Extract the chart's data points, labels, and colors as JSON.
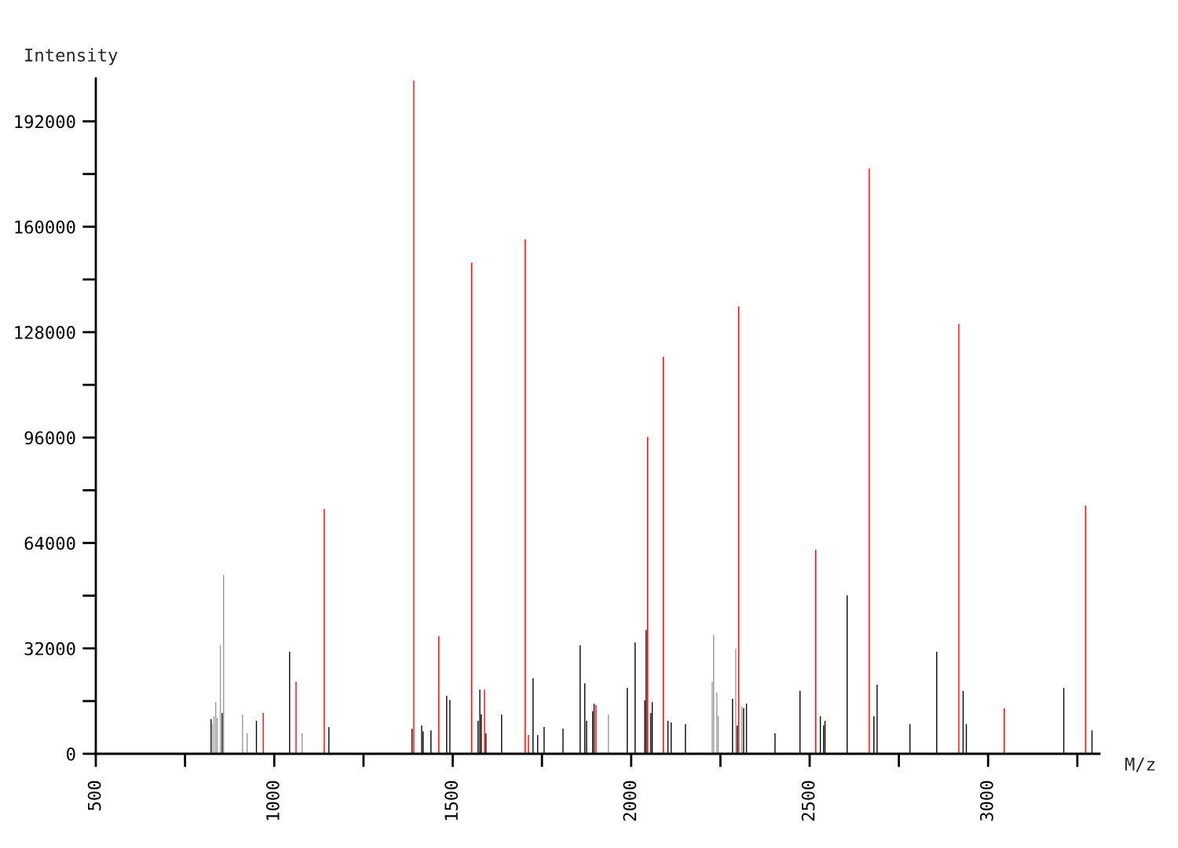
{
  "chart_data": {
    "type": "bar",
    "xlabel": "M/z",
    "ylabel": "Intensity",
    "x": [
      823,
      826,
      831,
      836,
      840,
      849,
      854,
      858,
      911,
      924,
      950,
      969,
      1043,
      1061,
      1078,
      1140,
      1153,
      1386,
      1391,
      1413,
      1417,
      1439,
      1461,
      1483,
      1492,
      1553,
      1571,
      1576,
      1580,
      1589,
      1593,
      1637,
      1703,
      1712,
      1725,
      1738,
      1756,
      1809,
      1857,
      1870,
      1875,
      1892,
      1896,
      1901,
      1936,
      1989,
      2011,
      2038,
      2042,
      2046,
      2055,
      2059,
      2090,
      2103,
      2112,
      2152,
      2227,
      2231,
      2240,
      2244,
      2284,
      2293,
      2297,
      2301,
      2310,
      2315,
      2323,
      2403,
      2473,
      2517,
      2530,
      2539,
      2543,
      2605,
      2667,
      2680,
      2689,
      2781,
      2856,
      2918,
      2930,
      2939,
      3045,
      3212,
      3273,
      3291
    ],
    "values": [
      10500,
      9000,
      11400,
      15700,
      10900,
      32900,
      12400,
      54300,
      11900,
      6200,
      10000,
      12400,
      31000,
      21900,
      6200,
      74300,
      8100,
      7600,
      204400,
      8600,
      6800,
      7100,
      35700,
      17600,
      16300,
      149100,
      10000,
      19500,
      11900,
      19500,
      6200,
      11900,
      156200,
      5700,
      22900,
      5700,
      8100,
      7600,
      32900,
      21400,
      10000,
      12900,
      15200,
      14800,
      11900,
      20000,
      33800,
      16200,
      37600,
      96200,
      12400,
      15700,
      120500,
      10000,
      9500,
      9000,
      21900,
      36200,
      18600,
      11400,
      16700,
      31900,
      8600,
      135800,
      14300,
      13800,
      15200,
      6200,
      19100,
      61900,
      11400,
      8600,
      10000,
      48100,
      177700,
      11400,
      21000,
      9000,
      31000,
      130500,
      19100,
      9000,
      13800,
      20000,
      75300,
      7100
    ],
    "colors": [
      "#000000",
      "#999999",
      "#999999",
      "#999999",
      "#999999",
      "#999999",
      "#000000",
      "#999999",
      "#999999",
      "#999999",
      "#000000",
      "#ff0000",
      "#000000",
      "#ff0000",
      "#999999",
      "#ff0000",
      "#000000",
      "#000000",
      "#ff0000",
      "#000000",
      "#000000",
      "#000000",
      "#ff0000",
      "#000000",
      "#000000",
      "#ff0000",
      "#000000",
      "#000000",
      "#000000",
      "#ff0000",
      "#000000",
      "#000000",
      "#ff0000",
      "#ff0000",
      "#000000",
      "#000000",
      "#000000",
      "#000000",
      "#000000",
      "#000000",
      "#000000",
      "#000000",
      "#000000",
      "#ff0000",
      "#999999",
      "#000000",
      "#000000",
      "#000000",
      "#000000",
      "#ff0000",
      "#000000",
      "#000000",
      "#ff0000",
      "#000000",
      "#000000",
      "#000000",
      "#999999",
      "#999999",
      "#999999",
      "#999999",
      "#000000",
      "#999999",
      "#000000",
      "#ff0000",
      "#999999",
      "#000000",
      "#000000",
      "#000000",
      "#000000",
      "#ff0000",
      "#000000",
      "#000000",
      "#000000",
      "#000000",
      "#ff0000",
      "#000000",
      "#000000",
      "#000000",
      "#000000",
      "#ff0000",
      "#000000",
      "#000000",
      "#ff0000",
      "#000000",
      "#ff0000",
      "#000000"
    ],
    "xlim": [
      500,
      3312
    ],
    "ylim": [
      0,
      205000
    ],
    "xticks": [
      500,
      {
        "value": 750,
        "label": null
      },
      1000,
      {
        "value": 1250,
        "label": null
      },
      1500,
      {
        "value": 1750,
        "label": null
      },
      2000,
      {
        "value": 2250,
        "label": null
      },
      2500,
      {
        "value": 2750,
        "label": null
      },
      3000,
      {
        "value": 3250,
        "label": null
      }
    ],
    "yticks": [
      0,
      {
        "value": 16000,
        "label": null
      },
      32000,
      {
        "value": 48000,
        "label": null
      },
      64000,
      {
        "value": 80000,
        "label": null
      },
      96000,
      {
        "value": 112000,
        "label": null
      },
      128000,
      {
        "value": 144000,
        "label": null
      },
      160000,
      {
        "value": 176000,
        "label": null
      },
      192000
    ],
    "grid": false
  }
}
